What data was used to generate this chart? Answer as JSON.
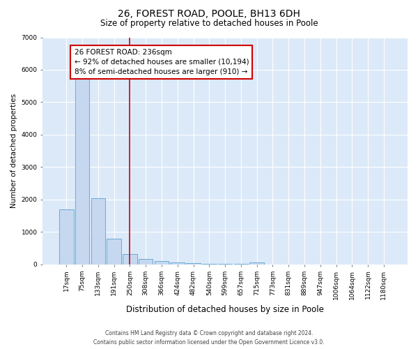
{
  "title": "26, FOREST ROAD, POOLE, BH13 6DH",
  "subtitle": "Size of property relative to detached houses in Poole",
  "xlabel": "Distribution of detached houses by size in Poole",
  "ylabel": "Number of detached properties",
  "footer_line1": "Contains HM Land Registry data © Crown copyright and database right 2024.",
  "footer_line2": "Contains public sector information licensed under the Open Government Licence v3.0.",
  "bar_labels": [
    "17sqm",
    "75sqm",
    "133sqm",
    "191sqm",
    "250sqm",
    "308sqm",
    "366sqm",
    "424sqm",
    "482sqm",
    "540sqm",
    "599sqm",
    "657sqm",
    "715sqm",
    "773sqm",
    "831sqm",
    "889sqm",
    "947sqm",
    "1006sqm",
    "1064sqm",
    "1122sqm",
    "1180sqm"
  ],
  "bar_values": [
    1700,
    5800,
    2050,
    800,
    310,
    165,
    95,
    60,
    35,
    20,
    10,
    10,
    55,
    0,
    0,
    0,
    0,
    0,
    0,
    0,
    0
  ],
  "bar_color": "#c5d8f0",
  "bar_edge_color": "#6aaad4",
  "vline_index": 4,
  "vline_color": "#cc0000",
  "annotation_text": "26 FOREST ROAD: 236sqm\n← 92% of detached houses are smaller (10,194)\n8% of semi-detached houses are larger (910) →",
  "annotation_box_facecolor": "white",
  "annotation_box_edgecolor": "#cc0000",
  "ylim": [
    0,
    7000
  ],
  "yticks": [
    0,
    1000,
    2000,
    3000,
    4000,
    5000,
    6000,
    7000
  ],
  "bg_color": "#dce9f8",
  "plot_bg_color": "#dce9f8",
  "title_fontsize": 10,
  "subtitle_fontsize": 8.5,
  "ylabel_fontsize": 7.5,
  "xlabel_fontsize": 8.5,
  "tick_fontsize": 6.5,
  "footer_fontsize": 5.5,
  "ann_fontsize": 7.5
}
